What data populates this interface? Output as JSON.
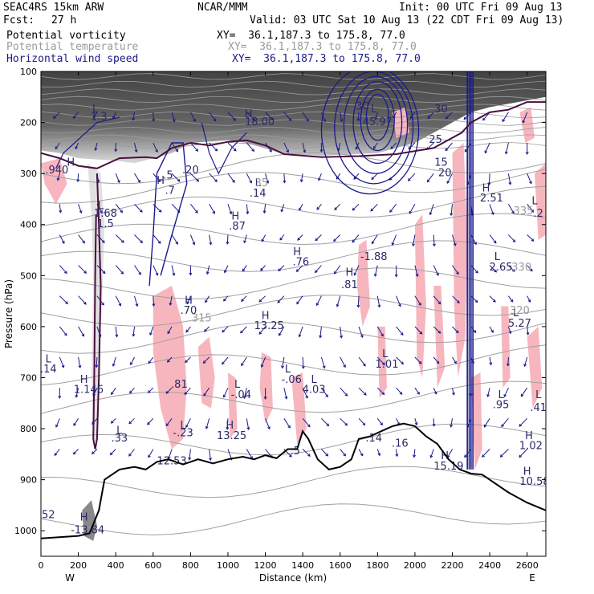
{
  "header": {
    "model": "SEAC4RS 15km ARW",
    "center": "NCAR/MMM",
    "init": "Init: 00 UTC Fri 09 Aug 13",
    "fcst_label": "Fcst:",
    "fcst_value": "27 h",
    "valid": "Valid: 03 UTC Sat 10 Aug 13 (22 CDT Fri 09 Aug 13)"
  },
  "fields": [
    {
      "name": "Potential vorticity",
      "xy": "XY=  36.1,187.3 to 175.8, 77.0",
      "color": "#000000"
    },
    {
      "name": "Potential temperature",
      "xy": "XY=  36.1,187.3 to 175.8, 77.0",
      "color": "#9a9a9a"
    },
    {
      "name": "Horizontal wind speed",
      "xy": "XY=  36.1,187.3 to 175.8, 77.0",
      "color": "#1a1a8c"
    }
  ],
  "colors": {
    "terrain": "#000000",
    "pv_contour": "#4a1040",
    "theta": "#a0a0a0",
    "wind": "#1a1a8c",
    "pink_fill": "#f7b6be"
  },
  "chart_data": {
    "type": "heatmap",
    "xlabel": "Distance (km)",
    "ylabel": "Pressure (hPa)",
    "xlim": [
      0,
      2700
    ],
    "ylim": [
      1050,
      100
    ],
    "x_ticks": [
      0,
      200,
      400,
      600,
      800,
      1000,
      1200,
      1400,
      1600,
      1800,
      2000,
      2200,
      2400,
      2600
    ],
    "y_ticks": [
      100,
      200,
      300,
      400,
      500,
      600,
      700,
      800,
      900,
      1000
    ],
    "x_end_labels": [
      "W",
      "E"
    ],
    "terrain_profile": [
      [
        0,
        1015
      ],
      [
        200,
        1010
      ],
      [
        260,
        1005
      ],
      [
        310,
        960
      ],
      [
        340,
        900
      ],
      [
        420,
        880
      ],
      [
        500,
        875
      ],
      [
        560,
        880
      ],
      [
        620,
        865
      ],
      [
        680,
        860
      ],
      [
        760,
        870
      ],
      [
        840,
        860
      ],
      [
        920,
        868
      ],
      [
        1000,
        860
      ],
      [
        1080,
        855
      ],
      [
        1140,
        860
      ],
      [
        1200,
        852
      ],
      [
        1260,
        858
      ],
      [
        1320,
        840
      ],
      [
        1370,
        840
      ],
      [
        1400,
        805
      ],
      [
        1430,
        820
      ],
      [
        1480,
        860
      ],
      [
        1540,
        880
      ],
      [
        1600,
        875
      ],
      [
        1660,
        860
      ],
      [
        1700,
        820
      ],
      [
        1760,
        815
      ],
      [
        1820,
        805
      ],
      [
        1880,
        795
      ],
      [
        1940,
        790
      ],
      [
        2000,
        795
      ],
      [
        2060,
        815
      ],
      [
        2120,
        830
      ],
      [
        2180,
        860
      ],
      [
        2240,
        880
      ],
      [
        2300,
        888
      ],
      [
        2360,
        890
      ],
      [
        2420,
        905
      ],
      [
        2500,
        925
      ],
      [
        2600,
        945
      ],
      [
        2700,
        960
      ]
    ],
    "annotations": [
      {
        "text": "H",
        "x": 160,
        "y": 285
      },
      {
        "text": ".940",
        "x": 85,
        "y": 300
      },
      {
        "text": "L",
        "x": 290,
        "y": 180
      },
      {
        "text": "1.3",
        "x": 310,
        "y": 195
      },
      {
        "text": "L",
        "x": 320,
        "y": 370
      },
      {
        "text": "1.68",
        "x": 345,
        "y": 385
      },
      {
        "text": "1.5",
        "x": 345,
        "y": 405
      },
      {
        "text": "H",
        "x": 640,
        "y": 320
      },
      {
        "text": ".5",
        "x": 680,
        "y": 310
      },
      {
        "text": ".7",
        "x": 690,
        "y": 340
      },
      {
        "text": ".20",
        "x": 800,
        "y": 300
      },
      {
        "text": "H",
        "x": 1110,
        "y": 190
      },
      {
        "text": "18.00",
        "x": 1170,
        "y": 205
      },
      {
        "text": "L",
        "x": 1160,
        "y": 325
      },
      {
        "text": ".14",
        "x": 1160,
        "y": 345
      },
      {
        "text": "H",
        "x": 1040,
        "y": 390
      },
      {
        "text": ".87",
        "x": 1050,
        "y": 410
      },
      {
        "text": "H",
        "x": 1370,
        "y": 460
      },
      {
        "text": ".76",
        "x": 1390,
        "y": 480
      },
      {
        "text": "H",
        "x": 1650,
        "y": 500
      },
      {
        "text": ".81",
        "x": 1650,
        "y": 525
      },
      {
        "text": "-1.88",
        "x": 1780,
        "y": 470
      },
      {
        "text": "H",
        "x": 790,
        "y": 555
      },
      {
        "text": ".70",
        "x": 790,
        "y": 575
      },
      {
        "text": "H",
        "x": 1200,
        "y": 585
      },
      {
        "text": "13.25",
        "x": 1220,
        "y": 605
      },
      {
        "text": "L",
        "x": 1320,
        "y": 690
      },
      {
        "text": "-.06",
        "x": 1340,
        "y": 710
      },
      {
        "text": "L",
        "x": 1460,
        "y": 710
      },
      {
        "text": "4.03",
        "x": 1460,
        "y": 730
      },
      {
        "text": "L",
        "x": 1840,
        "y": 660
      },
      {
        "text": "1.01",
        "x": 1850,
        "y": 680
      },
      {
        "text": "L",
        "x": 1050,
        "y": 720
      },
      {
        "text": "-.04",
        "x": 1070,
        "y": 740
      },
      {
        "text": ".81",
        "x": 740,
        "y": 720
      },
      {
        "text": "H",
        "x": 230,
        "y": 710
      },
      {
        "text": "1.146",
        "x": 255,
        "y": 730
      },
      {
        "text": "L",
        "x": 40,
        "y": 670
      },
      {
        "text": ".14",
        "x": 40,
        "y": 690
      },
      {
        "text": "L",
        "x": 420,
        "y": 810
      },
      {
        "text": ".33",
        "x": 420,
        "y": 825
      },
      {
        "text": "L",
        "x": 760,
        "y": 800
      },
      {
        "text": "-.23",
        "x": 760,
        "y": 815
      },
      {
        "text": "H",
        "x": 1010,
        "y": 800
      },
      {
        "text": "13.25",
        "x": 1020,
        "y": 820
      },
      {
        "text": "12.53",
        "x": 700,
        "y": 870
      },
      {
        "text": ".5",
        "x": 1360,
        "y": 850
      },
      {
        "text": ".14",
        "x": 1780,
        "y": 825
      },
      {
        "text": ".16",
        "x": 1920,
        "y": 835
      },
      {
        "text": "L",
        "x": 2460,
        "y": 740
      },
      {
        "text": ".95",
        "x": 2460,
        "y": 760
      },
      {
        "text": "H",
        "x": 2610,
        "y": 820
      },
      {
        "text": "1.02",
        "x": 2620,
        "y": 840
      },
      {
        "text": "L",
        "x": 2660,
        "y": 740
      },
      {
        "text": ".41",
        "x": 2660,
        "y": 765
      },
      {
        "text": "H",
        "x": 2160,
        "y": 860
      },
      {
        "text": "15.19",
        "x": 2180,
        "y": 880
      },
      {
        "text": "H",
        "x": 2600,
        "y": 890
      },
      {
        "text": "10.58",
        "x": 2640,
        "y": 910
      },
      {
        "text": "H",
        "x": 2380,
        "y": 335
      },
      {
        "text": "2.51",
        "x": 2410,
        "y": 355
      },
      {
        "text": "L",
        "x": 2440,
        "y": 470
      },
      {
        "text": "2.65",
        "x": 2460,
        "y": 490
      },
      {
        "text": "L",
        "x": 2540,
        "y": 580
      },
      {
        "text": "5.27",
        "x": 2560,
        "y": 600
      },
      {
        "text": "L",
        "x": 2640,
        "y": 360
      },
      {
        "text": ".2",
        "x": 2660,
        "y": 385
      },
      {
        "text": "L",
        "x": 1780,
        "y": 180
      },
      {
        "text": "45.97",
        "x": 1800,
        "y": 205
      },
      {
        "text": "30",
        "x": 1720,
        "y": 175
      },
      {
        "text": "30",
        "x": 2140,
        "y": 180
      },
      {
        "text": "25",
        "x": 2110,
        "y": 240
      },
      {
        "text": "15",
        "x": 2140,
        "y": 285
      },
      {
        "text": "20",
        "x": 2160,
        "y": 305
      },
      {
        "text": "H",
        "x": 230,
        "y": 980
      },
      {
        "text": "-13.84",
        "x": 250,
        "y": 1005
      },
      {
        "text": "52",
        "x": 40,
        "y": 975
      }
    ],
    "theta_labels": [
      {
        "text": "315",
        "x": 860,
        "y": 590
      },
      {
        "text": "330",
        "x": 2570,
        "y": 490
      },
      {
        "text": "335",
        "x": 2580,
        "y": 380
      },
      {
        "text": "320",
        "x": 2560,
        "y": 575
      },
      {
        "text": "35",
        "x": 1180,
        "y": 325
      }
    ]
  }
}
